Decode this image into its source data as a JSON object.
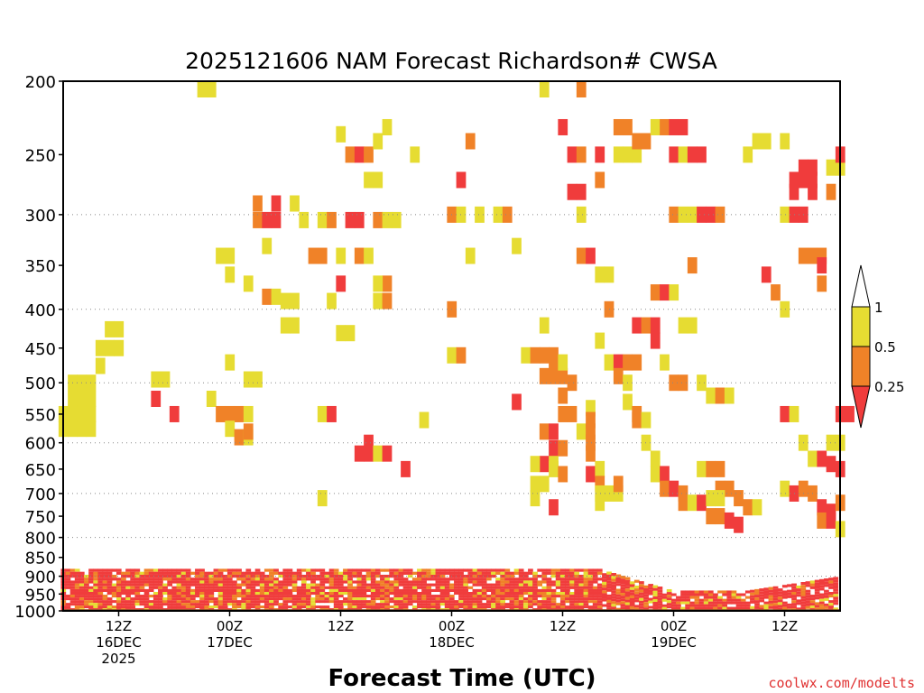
{
  "chart_data": {
    "type": "heatmap",
    "title": "2025121606 NAM Forecast Richardson# CWSA",
    "xlabel": "Forecast Time (UTC)",
    "ylabel": "",
    "credit": "coolwx.com/modelts",
    "y_scale": "log",
    "ylim": [
      1000,
      200
    ],
    "xlim_hours": [
      6,
      90
    ],
    "grid": true,
    "y_ticks": [
      200,
      250,
      300,
      350,
      400,
      450,
      500,
      550,
      600,
      650,
      700,
      750,
      800,
      850,
      900,
      950,
      1000
    ],
    "y_gridlines": [
      300,
      400,
      500,
      600,
      700,
      800,
      900
    ],
    "x_ticks": [
      {
        "hour": 12,
        "lines": [
          "12Z",
          "16DEC",
          "2025"
        ]
      },
      {
        "hour": 24,
        "lines": [
          "00Z",
          "17DEC"
        ]
      },
      {
        "hour": 36,
        "lines": [
          "12Z"
        ]
      },
      {
        "hour": 48,
        "lines": [
          "00Z",
          "18DEC"
        ]
      },
      {
        "hour": 60,
        "lines": [
          "12Z"
        ]
      },
      {
        "hour": 72,
        "lines": [
          "00Z",
          "19DEC"
        ]
      },
      {
        "hour": 84,
        "lines": [
          "12Z"
        ]
      }
    ],
    "legend": {
      "placement": "right",
      "labels": [
        "1",
        "0.5",
        "0.25"
      ],
      "bins": [
        {
          "range": "<0.25",
          "color": "#f03c3c"
        },
        {
          "range": "0.25-0.5",
          "color": "#f08228"
        },
        {
          "range": "0.5-1",
          "color": "#e6dc32"
        },
        {
          "range": ">1",
          "color": "#ffffff"
        }
      ]
    },
    "ground_color": "#8c5028",
    "cells": [
      [
        6,
        550,
        "Y"
      ],
      [
        6,
        575,
        "Y"
      ],
      [
        7,
        500,
        "Y"
      ],
      [
        7,
        525,
        "Y"
      ],
      [
        7,
        550,
        "Y"
      ],
      [
        7,
        575,
        "Y"
      ],
      [
        8,
        500,
        "Y"
      ],
      [
        8,
        525,
        "Y"
      ],
      [
        8,
        550,
        "Y"
      ],
      [
        8,
        575,
        "Y"
      ],
      [
        9,
        500,
        "Y"
      ],
      [
        9,
        525,
        "Y"
      ],
      [
        9,
        550,
        "Y"
      ],
      [
        9,
        575,
        "Y"
      ],
      [
        10,
        450,
        "Y"
      ],
      [
        10,
        475,
        "Y"
      ],
      [
        11,
        425,
        "Y"
      ],
      [
        11,
        450,
        "Y"
      ],
      [
        12,
        425,
        "Y"
      ],
      [
        12,
        450,
        "Y"
      ],
      [
        16,
        495,
        "Y"
      ],
      [
        17,
        495,
        "Y"
      ],
      [
        16,
        525,
        "R"
      ],
      [
        18,
        550,
        "R"
      ],
      [
        21,
        205,
        "Y"
      ],
      [
        22,
        205,
        "Y"
      ],
      [
        22,
        525,
        "Y"
      ],
      [
        23,
        550,
        "O"
      ],
      [
        24,
        550,
        "O"
      ],
      [
        25,
        550,
        "O"
      ],
      [
        24,
        575,
        "Y"
      ],
      [
        25,
        590,
        "O"
      ],
      [
        26,
        590,
        "Y"
      ],
      [
        26,
        550,
        "Y"
      ],
      [
        23,
        340,
        "Y"
      ],
      [
        24,
        340,
        "Y"
      ],
      [
        24,
        360,
        "Y"
      ],
      [
        26,
        370,
        "Y"
      ],
      [
        24,
        470,
        "Y"
      ],
      [
        26,
        495,
        "Y"
      ],
      [
        27,
        495,
        "Y"
      ],
      [
        26,
        580,
        "O"
      ],
      [
        27,
        290,
        "O"
      ],
      [
        27,
        305,
        "O"
      ],
      [
        28,
        305,
        "R"
      ],
      [
        29,
        305,
        "R"
      ],
      [
        28,
        330,
        "Y"
      ],
      [
        29,
        290,
        "R"
      ],
      [
        31,
        290,
        "Y"
      ],
      [
        28,
        385,
        "O"
      ],
      [
        29,
        385,
        "Y"
      ],
      [
        30,
        390,
        "Y"
      ],
      [
        31,
        390,
        "Y"
      ],
      [
        30,
        420,
        "Y"
      ],
      [
        31,
        420,
        "Y"
      ],
      [
        32,
        305,
        "Y"
      ],
      [
        33,
        340,
        "O"
      ],
      [
        34,
        340,
        "O"
      ],
      [
        34,
        305,
        "Y"
      ],
      [
        35,
        305,
        "O"
      ],
      [
        36,
        340,
        "Y"
      ],
      [
        35,
        390,
        "Y"
      ],
      [
        36,
        430,
        "Y"
      ],
      [
        37,
        430,
        "Y"
      ],
      [
        36,
        370,
        "R"
      ],
      [
        34,
        550,
        "Y"
      ],
      [
        35,
        550,
        "R"
      ],
      [
        34,
        710,
        "Y"
      ],
      [
        39,
        600,
        "R"
      ],
      [
        38,
        620,
        "R"
      ],
      [
        39,
        620,
        "R"
      ],
      [
        40,
        620,
        "Y"
      ],
      [
        41,
        620,
        "R"
      ],
      [
        36,
        235,
        "Y"
      ],
      [
        37,
        250,
        "O"
      ],
      [
        37,
        305,
        "R"
      ],
      [
        38,
        305,
        "R"
      ],
      [
        38,
        250,
        "R"
      ],
      [
        39,
        250,
        "O"
      ],
      [
        39,
        270,
        "Y"
      ],
      [
        40,
        270,
        "Y"
      ],
      [
        40,
        240,
        "Y"
      ],
      [
        41,
        230,
        "Y"
      ],
      [
        40,
        305,
        "O"
      ],
      [
        41,
        305,
        "Y"
      ],
      [
        42,
        305,
        "Y"
      ],
      [
        38,
        340,
        "O"
      ],
      [
        39,
        340,
        "Y"
      ],
      [
        40,
        390,
        "Y"
      ],
      [
        41,
        390,
        "O"
      ],
      [
        41,
        370,
        "O"
      ],
      [
        40,
        370,
        "Y"
      ],
      [
        43,
        650,
        "R"
      ],
      [
        44,
        250,
        "Y"
      ],
      [
        48,
        300,
        "O"
      ],
      [
        49,
        300,
        "Y"
      ],
      [
        49,
        270,
        "R"
      ],
      [
        50,
        240,
        "O"
      ],
      [
        50,
        340,
        "Y"
      ],
      [
        51,
        300,
        "Y"
      ],
      [
        53,
        300,
        "Y"
      ],
      [
        54,
        300,
        "O"
      ],
      [
        55,
        330,
        "Y"
      ],
      [
        48,
        400,
        "O"
      ],
      [
        48,
        460,
        "Y"
      ],
      [
        49,
        460,
        "O"
      ],
      [
        45,
        560,
        "Y"
      ],
      [
        55,
        530,
        "R"
      ],
      [
        56,
        460,
        "Y"
      ],
      [
        57,
        460,
        "O"
      ],
      [
        58,
        460,
        "O"
      ],
      [
        59,
        460,
        "O"
      ],
      [
        58,
        490,
        "O"
      ],
      [
        59,
        490,
        "O"
      ],
      [
        60,
        490,
        "O"
      ],
      [
        60,
        520,
        "O"
      ],
      [
        60,
        550,
        "O"
      ],
      [
        61,
        550,
        "O"
      ],
      [
        61,
        500,
        "O"
      ],
      [
        58,
        420,
        "Y"
      ],
      [
        59,
        470,
        "O"
      ],
      [
        60,
        470,
        "Y"
      ],
      [
        58,
        580,
        "O"
      ],
      [
        59,
        580,
        "R"
      ],
      [
        59,
        610,
        "R"
      ],
      [
        60,
        610,
        "O"
      ],
      [
        58,
        640,
        "R"
      ],
      [
        59,
        640,
        "Y"
      ],
      [
        57,
        640,
        "Y"
      ],
      [
        57,
        680,
        "Y"
      ],
      [
        58,
        680,
        "Y"
      ],
      [
        59,
        650,
        "Y"
      ],
      [
        60,
        660,
        "O"
      ],
      [
        59,
        730,
        "R"
      ],
      [
        57,
        710,
        "Y"
      ],
      [
        58,
        205,
        "Y"
      ],
      [
        60,
        230,
        "R"
      ],
      [
        61,
        250,
        "R"
      ],
      [
        61,
        280,
        "R"
      ],
      [
        62,
        280,
        "R"
      ],
      [
        62,
        205,
        "O"
      ],
      [
        62,
        250,
        "O"
      ],
      [
        62,
        300,
        "Y"
      ],
      [
        62,
        340,
        "O"
      ],
      [
        63,
        340,
        "R"
      ],
      [
        64,
        270,
        "O"
      ],
      [
        64,
        250,
        "R"
      ],
      [
        62,
        580,
        "Y"
      ],
      [
        63,
        540,
        "Y"
      ],
      [
        63,
        560,
        "O"
      ],
      [
        63,
        580,
        "O"
      ],
      [
        63,
        600,
        "O"
      ],
      [
        63,
        620,
        "O"
      ],
      [
        63,
        660,
        "R"
      ],
      [
        64,
        650,
        "Y"
      ],
      [
        64,
        680,
        "O"
      ],
      [
        64,
        700,
        "Y"
      ],
      [
        64,
        720,
        "Y"
      ],
      [
        65,
        700,
        "Y"
      ],
      [
        66,
        700,
        "Y"
      ],
      [
        66,
        680,
        "O"
      ],
      [
        64,
        360,
        "Y"
      ],
      [
        65,
        360,
        "Y"
      ],
      [
        64,
        440,
        "Y"
      ],
      [
        65,
        400,
        "O"
      ],
      [
        65,
        470,
        "Y"
      ],
      [
        66,
        470,
        "R"
      ],
      [
        66,
        490,
        "O"
      ],
      [
        67,
        470,
        "O"
      ],
      [
        68,
        470,
        "O"
      ],
      [
        67,
        500,
        "Y"
      ],
      [
        67,
        530,
        "Y"
      ],
      [
        68,
        550,
        "O"
      ],
      [
        68,
        560,
        "O"
      ],
      [
        69,
        560,
        "Y"
      ],
      [
        69,
        600,
        "Y"
      ],
      [
        70,
        630,
        "Y"
      ],
      [
        70,
        660,
        "Y"
      ],
      [
        71,
        660,
        "R"
      ],
      [
        71,
        690,
        "O"
      ],
      [
        72,
        690,
        "R"
      ],
      [
        73,
        700,
        "O"
      ],
      [
        73,
        720,
        "O"
      ],
      [
        74,
        720,
        "Y"
      ],
      [
        75,
        720,
        "R"
      ],
      [
        76,
        750,
        "O"
      ],
      [
        77,
        750,
        "O"
      ],
      [
        78,
        760,
        "R"
      ],
      [
        79,
        770,
        "R"
      ],
      [
        66,
        250,
        "Y"
      ],
      [
        67,
        250,
        "Y"
      ],
      [
        68,
        250,
        "Y"
      ],
      [
        68,
        240,
        "O"
      ],
      [
        69,
        240,
        "O"
      ],
      [
        70,
        230,
        "Y"
      ],
      [
        66,
        230,
        "O"
      ],
      [
        67,
        230,
        "O"
      ],
      [
        68,
        420,
        "R"
      ],
      [
        69,
        420,
        "O"
      ],
      [
        70,
        420,
        "R"
      ],
      [
        70,
        380,
        "O"
      ],
      [
        71,
        380,
        "R"
      ],
      [
        72,
        380,
        "Y"
      ],
      [
        73,
        420,
        "Y"
      ],
      [
        74,
        420,
        "Y"
      ],
      [
        70,
        440,
        "R"
      ],
      [
        71,
        470,
        "Y"
      ],
      [
        72,
        500,
        "O"
      ],
      [
        73,
        500,
        "O"
      ],
      [
        71,
        230,
        "O"
      ],
      [
        72,
        230,
        "R"
      ],
      [
        73,
        230,
        "R"
      ],
      [
        72,
        250,
        "R"
      ],
      [
        73,
        250,
        "Y"
      ],
      [
        74,
        250,
        "R"
      ],
      [
        75,
        250,
        "R"
      ],
      [
        72,
        300,
        "O"
      ],
      [
        73,
        300,
        "Y"
      ],
      [
        74,
        300,
        "Y"
      ],
      [
        75,
        300,
        "R"
      ],
      [
        76,
        300,
        "R"
      ],
      [
        77,
        300,
        "O"
      ],
      [
        74,
        350,
        "O"
      ],
      [
        75,
        500,
        "Y"
      ],
      [
        76,
        520,
        "Y"
      ],
      [
        77,
        520,
        "O"
      ],
      [
        78,
        520,
        "Y"
      ],
      [
        75,
        650,
        "Y"
      ],
      [
        76,
        650,
        "O"
      ],
      [
        77,
        650,
        "O"
      ],
      [
        77,
        690,
        "O"
      ],
      [
        78,
        690,
        "O"
      ],
      [
        76,
        710,
        "Y"
      ],
      [
        77,
        710,
        "Y"
      ],
      [
        79,
        710,
        "O"
      ],
      [
        80,
        730,
        "O"
      ],
      [
        81,
        730,
        "Y"
      ],
      [
        80,
        250,
        "Y"
      ],
      [
        81,
        240,
        "Y"
      ],
      [
        82,
        240,
        "Y"
      ],
      [
        82,
        360,
        "R"
      ],
      [
        83,
        380,
        "O"
      ],
      [
        84,
        400,
        "Y"
      ],
      [
        84,
        240,
        "Y"
      ],
      [
        84,
        300,
        "Y"
      ],
      [
        85,
        270,
        "R"
      ],
      [
        85,
        280,
        "R"
      ],
      [
        86,
        270,
        "R"
      ],
      [
        86,
        260,
        "R"
      ],
      [
        87,
        260,
        "R"
      ],
      [
        87,
        270,
        "R"
      ],
      [
        87,
        280,
        "R"
      ],
      [
        85,
        300,
        "R"
      ],
      [
        86,
        300,
        "R"
      ],
      [
        86,
        340,
        "O"
      ],
      [
        87,
        340,
        "O"
      ],
      [
        88,
        340,
        "O"
      ],
      [
        88,
        350,
        "R"
      ],
      [
        88,
        370,
        "O"
      ],
      [
        89,
        260,
        "Y"
      ],
      [
        89,
        280,
        "O"
      ],
      [
        90,
        260,
        "Y"
      ],
      [
        90,
        250,
        "R"
      ],
      [
        84,
        690,
        "Y"
      ],
      [
        85,
        700,
        "R"
      ],
      [
        86,
        690,
        "O"
      ],
      [
        87,
        700,
        "O"
      ],
      [
        88,
        730,
        "R"
      ],
      [
        89,
        740,
        "R"
      ],
      [
        90,
        720,
        "O"
      ],
      [
        84,
        550,
        "R"
      ],
      [
        85,
        550,
        "Y"
      ],
      [
        86,
        600,
        "Y"
      ],
      [
        87,
        630,
        "Y"
      ],
      [
        88,
        630,
        "R"
      ],
      [
        89,
        640,
        "R"
      ],
      [
        90,
        650,
        "R"
      ],
      [
        90,
        550,
        "R"
      ],
      [
        91,
        550,
        "R"
      ],
      [
        89,
        600,
        "Y"
      ],
      [
        90,
        600,
        "Y"
      ],
      [
        88,
        760,
        "O"
      ],
      [
        89,
        760,
        "R"
      ],
      [
        90,
        780,
        "Y"
      ]
    ]
  }
}
